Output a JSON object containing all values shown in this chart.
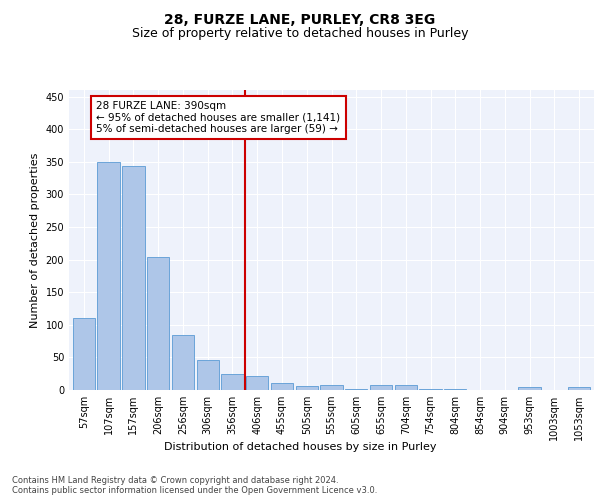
{
  "title_line1": "28, FURZE LANE, PURLEY, CR8 3EG",
  "title_line2": "Size of property relative to detached houses in Purley",
  "xlabel": "Distribution of detached houses by size in Purley",
  "ylabel": "Number of detached properties",
  "bar_labels": [
    "57sqm",
    "107sqm",
    "157sqm",
    "206sqm",
    "256sqm",
    "306sqm",
    "356sqm",
    "406sqm",
    "455sqm",
    "505sqm",
    "555sqm",
    "605sqm",
    "655sqm",
    "704sqm",
    "754sqm",
    "804sqm",
    "854sqm",
    "904sqm",
    "953sqm",
    "1003sqm",
    "1053sqm"
  ],
  "bar_values": [
    110,
    350,
    343,
    204,
    85,
    46,
    25,
    22,
    11,
    6,
    8,
    2,
    8,
    8,
    2,
    2,
    0,
    0,
    4,
    0,
    4
  ],
  "bar_color": "#aec6e8",
  "bar_edge_color": "#5b9bd5",
  "annotation_text": "28 FURZE LANE: 390sqm\n← 95% of detached houses are smaller (1,141)\n5% of semi-detached houses are larger (59) →",
  "vline_color": "#cc0000",
  "annotation_box_color": "#cc0000",
  "ylim": [
    0,
    460
  ],
  "yticks": [
    0,
    50,
    100,
    150,
    200,
    250,
    300,
    350,
    400,
    450
  ],
  "background_color": "#eef2fb",
  "footer_text": "Contains HM Land Registry data © Crown copyright and database right 2024.\nContains public sector information licensed under the Open Government Licence v3.0.",
  "grid_color": "#ffffff",
  "title_fontsize": 10,
  "subtitle_fontsize": 9,
  "axis_label_fontsize": 8,
  "tick_fontsize": 7,
  "annotation_fontsize": 7.5,
  "footer_fontsize": 6
}
